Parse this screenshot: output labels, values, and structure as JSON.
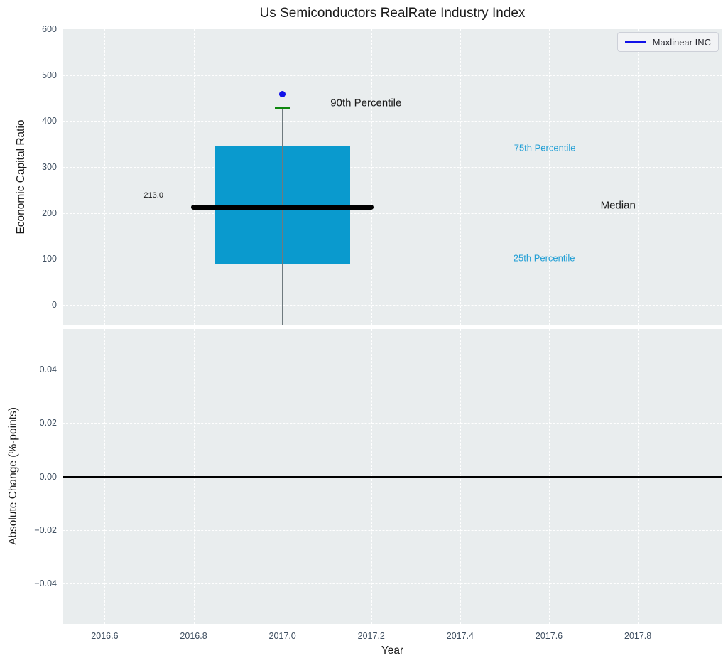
{
  "figure": {
    "title": "Us Semiconductors RealRate Industry Index"
  },
  "colors": {
    "plot_bg": "#e9edee",
    "grid": "#ffffff",
    "box_fill": "#0a9ace",
    "median": "#000000",
    "whisker": "#6f7a7e",
    "p90_cap": "#0e870e",
    "point": "#1212e8",
    "legend_line": "#1212e8",
    "percentile": "#229fd5",
    "tick": "#3e4e60",
    "text": "#1a1a1a",
    "legend_bg": "#f2f3f5",
    "legend_border": "#cdd0d8",
    "zero_line": "#000000"
  },
  "chart_data": [
    {
      "type": "box",
      "title": "Us Semiconductors RealRate Industry Index",
      "ylabel": "Economic Capital Ratio",
      "xlim": [
        2016.505,
        2017.99
      ],
      "ylim": [
        -45,
        600
      ],
      "yticks": [
        0,
        100,
        200,
        300,
        400,
        500,
        600
      ],
      "ytick_labels": [
        "0",
        "100",
        "200",
        "300",
        "400",
        "500",
        "600"
      ],
      "xticks": [
        2016.6,
        2016.8,
        2017.0,
        2017.2,
        2017.4,
        2017.6,
        2017.8
      ],
      "grid": true,
      "legend": {
        "label": "Maxlinear INC",
        "location": "upper right"
      },
      "boxes": [
        {
          "x": 2017.0,
          "half_width": 0.152,
          "q1": 88,
          "median": 213.0,
          "q3": 347,
          "p90": 427,
          "whisker_low": -45,
          "cap_half_width": 0.017,
          "median_line_half_span": 0.205,
          "company_point": {
            "name": "Maxlinear INC",
            "value": 459
          }
        }
      ],
      "annotations": [
        {
          "text": "213.0",
          "fx": 0.138,
          "fy": 0.561,
          "color_key": "text",
          "size": "xs"
        },
        {
          "text": "90th Percentile",
          "fx": 0.46,
          "fy": 0.25,
          "color_key": "text",
          "size": "md"
        },
        {
          "text": "75th Percentile",
          "fx": 0.731,
          "fy": 0.4,
          "color_key": "percentile",
          "size": "sm"
        },
        {
          "text": "Median",
          "fx": 0.842,
          "fy": 0.595,
          "color_key": "text",
          "size": "md"
        },
        {
          "text": "25th Percentile",
          "fx": 0.73,
          "fy": 0.772,
          "color_key": "percentile",
          "size": "sm"
        }
      ]
    },
    {
      "type": "line",
      "ylabel": "Absolute Change (%-points)",
      "xlabel": "Year",
      "xlim": [
        2016.505,
        2017.99
      ],
      "ylim": [
        -0.055,
        0.055
      ],
      "yticks": [
        -0.04,
        -0.02,
        0.0,
        0.02,
        0.04
      ],
      "ytick_labels": [
        "−0.04",
        "−0.02",
        "0.00",
        "0.02",
        "0.04"
      ],
      "xticks": [
        2016.6,
        2016.8,
        2017.0,
        2017.2,
        2017.4,
        2017.6,
        2017.8
      ],
      "xtick_labels": [
        "2016.6",
        "2016.8",
        "2017.0",
        "2017.2",
        "2017.4",
        "2017.6",
        "2017.8"
      ],
      "grid": true,
      "zero_line": 0.0,
      "series": []
    }
  ]
}
